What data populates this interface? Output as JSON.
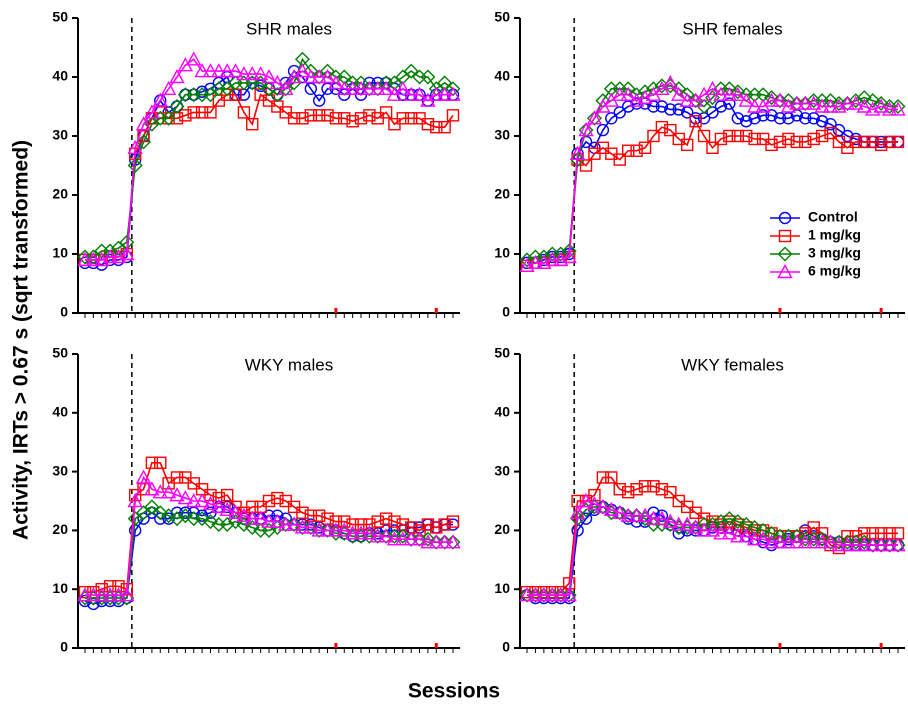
{
  "shared_ylabel": "Activity, IRTs > 0.67 s (sqrt transformed)",
  "shared_xlabel": "Sessions",
  "chart_data": [
    {
      "type": "line",
      "title": "SHR males",
      "categories": [
        null,
        null,
        null,
        null,
        null,
        null,
        null,
        null,
        null,
        null,
        null,
        null,
        null,
        null,
        null,
        null,
        null,
        null,
        null,
        null,
        null,
        null,
        null,
        null,
        null,
        null,
        null,
        null,
        null,
        null,
        null,
        null,
        null,
        null,
        null,
        null,
        null,
        null,
        null,
        null,
        null,
        null,
        null,
        null,
        null
      ],
      "ylim": [
        0,
        50
      ],
      "yticks": [
        0,
        10,
        20,
        30,
        40,
        50
      ],
      "legend": false,
      "series": [
        {
          "name": "Control",
          "color": "#0000ff",
          "marker": "circle",
          "values": [
            8.5,
            8.5,
            8.2,
            9,
            9,
            9.5,
            26,
            30,
            33,
            36,
            34,
            35,
            37,
            37,
            37.5,
            38,
            39,
            40,
            37,
            37,
            39,
            38.5,
            38,
            37,
            39,
            41,
            40,
            38,
            36,
            38,
            38,
            37,
            38,
            37,
            39,
            39,
            39,
            38,
            37,
            37,
            37,
            36,
            37,
            37,
            37
          ]
        },
        {
          "name": "1 mg/kg",
          "color": "#ff0000",
          "marker": "square",
          "values": [
            9,
            9,
            9,
            9.5,
            9.5,
            10,
            27,
            30,
            33,
            34,
            33,
            33,
            33.5,
            34,
            34,
            34,
            36,
            37,
            37,
            34,
            32,
            37,
            36,
            35,
            34,
            33,
            33,
            33.5,
            33.5,
            33.5,
            33,
            33,
            32.5,
            33,
            33.5,
            33,
            34,
            32,
            33,
            33,
            33,
            32,
            31.5,
            31.5,
            33.5
          ]
        },
        {
          "name": "3 mg/kg",
          "color": "#008000",
          "marker": "diamond",
          "values": [
            9.5,
            9.5,
            10.5,
            10.5,
            11,
            12,
            25,
            29,
            32,
            33,
            33,
            35,
            37,
            37,
            37,
            37,
            38,
            38,
            39,
            39,
            39,
            39,
            38,
            37,
            38,
            39,
            43,
            41,
            40,
            41,
            40,
            40,
            39,
            39,
            38,
            38,
            39,
            39,
            40,
            41,
            40,
            40,
            38,
            39,
            38
          ]
        },
        {
          "name": "6 mg/kg",
          "color": "#ff00ff",
          "marker": "triangle",
          "values": [
            9,
            9,
            9,
            9.5,
            9.5,
            10,
            28,
            32,
            34,
            36,
            38,
            40,
            42,
            43,
            41,
            41,
            41,
            41,
            41,
            40.5,
            40.5,
            40.5,
            40,
            39,
            38,
            40,
            41,
            40,
            40,
            40,
            39,
            38,
            38,
            38,
            38,
            38,
            38,
            37,
            38,
            37,
            37,
            36,
            37,
            37,
            37
          ]
        }
      ]
    },
    {
      "type": "line",
      "title": "SHR females",
      "categories": [
        null,
        null,
        null,
        null,
        null,
        null,
        null,
        null,
        null,
        null,
        null,
        null,
        null,
        null,
        null,
        null,
        null,
        null,
        null,
        null,
        null,
        null,
        null,
        null,
        null,
        null,
        null,
        null,
        null,
        null,
        null,
        null,
        null,
        null,
        null,
        null,
        null,
        null,
        null,
        null,
        null,
        null,
        null,
        null,
        null
      ],
      "ylim": [
        0,
        50
      ],
      "yticks": [
        0,
        10,
        20,
        30,
        40,
        50
      ],
      "legend": "right",
      "series": [
        {
          "name": "Control",
          "color": "#0000ff",
          "marker": "circle",
          "values": [
            8.5,
            8.5,
            9,
            9.5,
            9.5,
            10,
            27,
            29,
            28,
            31,
            33,
            34,
            35,
            35.5,
            35.5,
            35,
            35,
            34.5,
            34.5,
            34,
            33,
            33,
            34,
            35,
            35.5,
            33,
            32.5,
            33,
            33.5,
            33.5,
            33,
            33,
            33.5,
            33,
            33,
            32.5,
            32,
            31,
            30,
            29.5,
            29,
            29,
            29,
            29,
            29
          ]
        },
        {
          "name": "1 mg/kg",
          "color": "#ff0000",
          "marker": "square",
          "values": [
            8,
            8.5,
            8.5,
            9,
            9,
            9.5,
            26,
            25,
            27,
            28,
            27,
            26,
            27.5,
            27.5,
            28,
            30,
            31.5,
            31,
            29.5,
            28.5,
            32.5,
            30,
            28,
            29.5,
            30,
            30,
            30,
            29.5,
            29.5,
            28.5,
            29,
            29.5,
            29,
            29,
            29.5,
            30,
            30.5,
            29,
            28,
            29,
            29,
            29,
            28.5,
            29,
            29
          ]
        },
        {
          "name": "3 mg/kg",
          "color": "#008000",
          "marker": "diamond",
          "values": [
            9,
            9.5,
            9.5,
            10,
            10,
            10.5,
            26,
            31,
            33,
            36,
            38,
            38,
            38,
            37,
            37.5,
            38,
            38.5,
            38.5,
            38,
            37,
            36,
            35,
            36.5,
            38,
            38,
            37.5,
            37,
            37,
            37,
            36.5,
            36,
            36,
            35.5,
            35.5,
            36,
            36,
            36,
            35.5,
            35.5,
            36,
            36.5,
            36,
            35.5,
            35,
            35
          ]
        },
        {
          "name": "6 mg/kg",
          "color": "#ff00ff",
          "marker": "triangle",
          "values": [
            8,
            8.5,
            8.5,
            9,
            9,
            9.5,
            27,
            31,
            33,
            35,
            36,
            37,
            37,
            36,
            36.5,
            37,
            38,
            39,
            37,
            36,
            36,
            37,
            38,
            37,
            37,
            37,
            36,
            35,
            35,
            36,
            36,
            35,
            35.5,
            35.5,
            35.5,
            35,
            35,
            35,
            35.5,
            35.5,
            35,
            34.5,
            35,
            34.5,
            34.5
          ]
        }
      ]
    },
    {
      "type": "line",
      "title": "WKY males",
      "categories": [
        null,
        null,
        null,
        null,
        null,
        null,
        null,
        null,
        null,
        null,
        null,
        null,
        null,
        null,
        null,
        null,
        null,
        null,
        null,
        null,
        null,
        null,
        null,
        null,
        null,
        null,
        null,
        null,
        null,
        null,
        null,
        null,
        null,
        null,
        null,
        null,
        null,
        null,
        null,
        null,
        null,
        null,
        null,
        null,
        null
      ],
      "ylim": [
        0,
        50
      ],
      "yticks": [
        0,
        10,
        20,
        30,
        40,
        50
      ],
      "legend": false,
      "series": [
        {
          "name": "Control",
          "color": "#0000ff",
          "marker": "circle",
          "values": [
            8,
            7.5,
            8,
            8,
            8,
            8.5,
            20,
            22,
            23,
            22,
            22,
            23,
            23,
            23,
            22.5,
            23,
            24,
            24,
            23,
            22,
            22,
            22,
            22.5,
            22.5,
            22,
            21,
            21,
            21,
            20.5,
            20,
            20,
            19.5,
            19,
            19,
            19.5,
            19.5,
            20,
            20,
            20,
            20.5,
            20.5,
            21,
            20.5,
            21,
            21
          ]
        },
        {
          "name": "1 mg/kg",
          "color": "#ff0000",
          "marker": "square",
          "values": [
            9.5,
            9.5,
            10,
            10.5,
            10.5,
            10,
            26,
            27,
            31.5,
            31.5,
            28,
            29,
            29,
            28,
            27,
            26,
            25.5,
            26,
            24,
            23,
            24,
            24,
            25,
            25.5,
            25,
            24,
            23,
            22.5,
            22.5,
            22,
            21.5,
            21.5,
            21,
            21,
            21,
            21.5,
            22,
            21.5,
            21,
            20.5,
            20,
            21,
            20.5,
            21,
            21.5
          ]
        },
        {
          "name": "3 mg/kg",
          "color": "#008000",
          "marker": "diamond",
          "values": [
            8.5,
            8.5,
            8.5,
            8.5,
            8.5,
            8.5,
            22,
            23,
            24,
            23,
            22.5,
            22,
            22.5,
            22,
            22,
            21.5,
            21,
            21,
            21.5,
            21,
            20.5,
            20,
            20,
            20.5,
            21,
            21,
            20.5,
            20.5,
            20,
            20,
            19.5,
            19.5,
            19,
            19,
            19,
            19,
            19,
            19,
            19,
            18.5,
            18.5,
            18.5,
            18,
            18,
            18
          ]
        },
        {
          "name": "6 mg/kg",
          "color": "#ff00ff",
          "marker": "triangle",
          "values": [
            9,
            9,
            9,
            9,
            9,
            9,
            25,
            29,
            27,
            26.5,
            26.5,
            26,
            25.5,
            25,
            25,
            24.5,
            24,
            23.5,
            23,
            22.5,
            22,
            22,
            21.5,
            21.5,
            21,
            21,
            20.5,
            20.5,
            20,
            20,
            20,
            20,
            19.5,
            19.5,
            19.5,
            19,
            19,
            18.5,
            18.5,
            18.5,
            18.5,
            18,
            18,
            18,
            18
          ]
        }
      ]
    },
    {
      "type": "line",
      "title": "WKY females",
      "categories": [
        null,
        null,
        null,
        null,
        null,
        null,
        null,
        null,
        null,
        null,
        null,
        null,
        null,
        null,
        null,
        null,
        null,
        null,
        null,
        null,
        null,
        null,
        null,
        null,
        null,
        null,
        null,
        null,
        null,
        null,
        null,
        null,
        null,
        null,
        null,
        null,
        null,
        null,
        null,
        null,
        null,
        null,
        null,
        null,
        null
      ],
      "ylim": [
        0,
        50
      ],
      "yticks": [
        0,
        10,
        20,
        30,
        40,
        50
      ],
      "legend": false,
      "series": [
        {
          "name": "Control",
          "color": "#0000ff",
          "marker": "circle",
          "values": [
            9,
            8.5,
            8.5,
            8.5,
            8.5,
            8.5,
            20,
            22,
            23.5,
            24,
            23.5,
            23,
            22,
            21.5,
            21.5,
            23,
            22.5,
            21,
            19.5,
            20,
            20,
            20,
            20.5,
            20.5,
            20.5,
            20,
            19,
            18.5,
            18,
            17.5,
            18,
            18.5,
            19,
            20,
            19,
            18.5,
            18,
            18,
            17.5,
            17.5,
            17.5,
            17.5,
            17.5,
            17.5,
            17.5
          ]
        },
        {
          "name": "1 mg/kg",
          "color": "#ff0000",
          "marker": "square",
          "values": [
            9.5,
            9.5,
            9.5,
            9.5,
            9.5,
            11,
            25,
            25,
            26,
            29,
            29,
            27,
            26.5,
            27,
            27.5,
            27.5,
            27,
            26.5,
            25,
            24,
            23,
            22,
            21.5,
            21,
            21.5,
            21,
            20.5,
            20,
            20,
            19.5,
            19,
            19,
            19,
            19.5,
            20.5,
            19.5,
            17.5,
            17,
            19,
            19,
            19.5,
            19.5,
            19.5,
            19.5,
            19.5
          ]
        },
        {
          "name": "3 mg/kg",
          "color": "#008000",
          "marker": "diamond",
          "values": [
            9,
            9,
            9,
            9,
            9,
            9,
            22,
            23.5,
            24,
            24,
            23,
            23,
            22.5,
            22.5,
            22,
            21,
            21,
            21,
            20.5,
            20.5,
            20.5,
            21,
            21,
            21.5,
            22,
            21.5,
            21,
            20.5,
            20,
            19.5,
            19,
            19,
            19,
            18.5,
            18.5,
            18.5,
            18,
            18,
            18,
            18,
            18,
            17.5,
            17.5,
            17.5,
            17.5
          ]
        },
        {
          "name": "6 mg/kg",
          "color": "#ff00ff",
          "marker": "triangle",
          "values": [
            9,
            9,
            9,
            9,
            9,
            9,
            23,
            25,
            24.5,
            24,
            23.5,
            23,
            22.5,
            22.5,
            22.5,
            22,
            22,
            21.5,
            21,
            21,
            20.5,
            20,
            20,
            19.5,
            19.5,
            19,
            19,
            18.5,
            18.5,
            18,
            18,
            18,
            18,
            18,
            18,
            18,
            18,
            17.5,
            17.5,
            17.5,
            17.5,
            17.5,
            17.5,
            17.5,
            17.5
          ]
        }
      ]
    }
  ]
}
